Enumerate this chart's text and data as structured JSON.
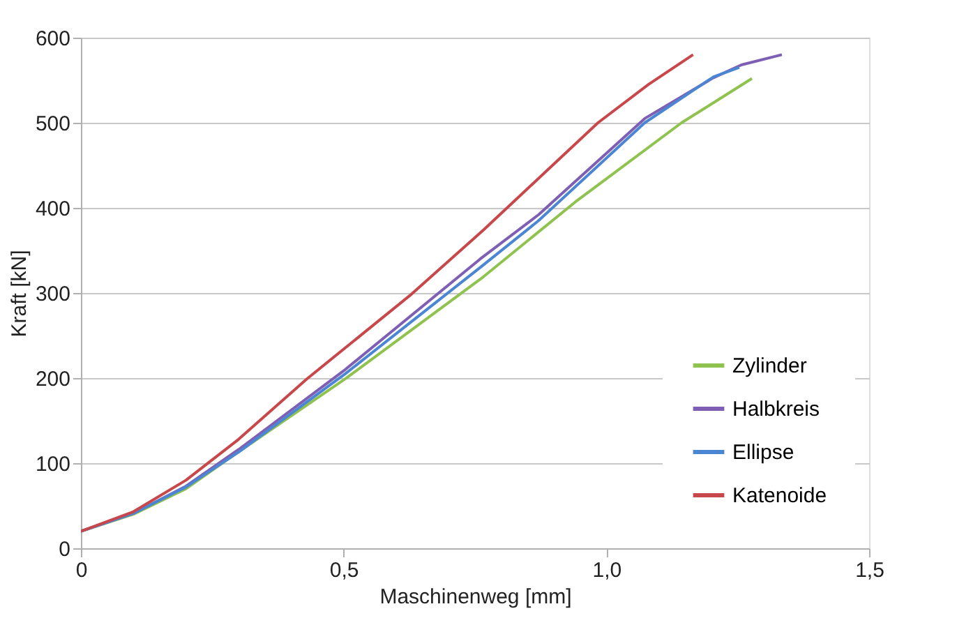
{
  "chart_data": {
    "type": "line",
    "xlabel": "Maschinenweg [mm]",
    "ylabel": "Kraft [kN]",
    "xlim": [
      0,
      1.5
    ],
    "xticks": [
      0,
      {
        "value": 0.5,
        "label": "0,5"
      },
      {
        "value": 1.0,
        "label": "1,0"
      },
      {
        "value": 1.5,
        "label": "1,5"
      }
    ],
    "ylim": [
      0,
      600
    ],
    "yticks": [
      0,
      100,
      200,
      300,
      400,
      500,
      600
    ],
    "grid": "y",
    "legend": "bottom right",
    "line_style": "solid",
    "marker": "none",
    "series": [
      {
        "name": "Zylinder",
        "color": "#8fc24e",
        "x": [
          0,
          0.1,
          0.2,
          0.283,
          0.503,
          0.766,
          0.941,
          1.143,
          1.277
        ],
        "values": [
          20,
          40,
          70,
          106,
          199,
          319,
          407,
          500,
          552
        ]
      },
      {
        "name": "Halbkreis",
        "color": "#7e5fb4",
        "x": [
          0,
          0.1,
          0.2,
          0.3,
          0.503,
          0.76,
          0.871,
          1.073,
          1.204,
          1.257,
          1.334
        ],
        "values": [
          20,
          41,
          73,
          116,
          210,
          340,
          392,
          505,
          553,
          568,
          580
        ]
      },
      {
        "name": "Ellipse",
        "color": "#4a86d4",
        "x": [
          0,
          0.1,
          0.2,
          0.3,
          0.503,
          0.76,
          0.871,
          1.073,
          1.204,
          1.253
        ],
        "values": [
          20,
          41,
          72,
          113,
          205,
          330,
          385,
          500,
          554,
          565
        ]
      },
      {
        "name": "Katenoide",
        "color": "#c8474a",
        "x": [
          0,
          0.1,
          0.2,
          0.3,
          0.43,
          0.626,
          0.766,
          0.984,
          1.08,
          1.165
        ],
        "values": [
          20,
          43,
          80,
          128,
          199,
          297,
          374,
          500,
          545,
          580
        ]
      }
    ]
  }
}
